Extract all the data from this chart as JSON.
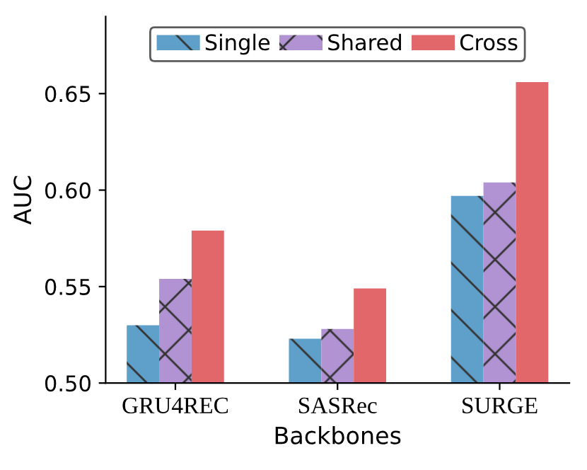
{
  "chart_data": {
    "type": "bar",
    "xlabel": "Backbones",
    "ylabel": "AUC",
    "categories": [
      "GRU4REC",
      "SASRec",
      "SURGE"
    ],
    "series": [
      {
        "name": "Single",
        "color": "#5fa0cb",
        "values": [
          0.53,
          0.523,
          0.597
        ]
      },
      {
        "name": "Shared",
        "color": "#b193d3",
        "values": [
          0.554,
          0.528,
          0.604
        ]
      },
      {
        "name": "Cross",
        "color": "#e2676a",
        "values": [
          0.579,
          0.549,
          0.656
        ]
      }
    ],
    "ylim": [
      0.5,
      0.69
    ],
    "yticks": [
      {
        "value": 0.5,
        "label": "0.50"
      },
      {
        "value": 0.55,
        "label": "0.55"
      },
      {
        "value": 0.6,
        "label": "0.60"
      },
      {
        "value": 0.65,
        "label": "0.65"
      }
    ],
    "grid": false,
    "legend": "top"
  }
}
